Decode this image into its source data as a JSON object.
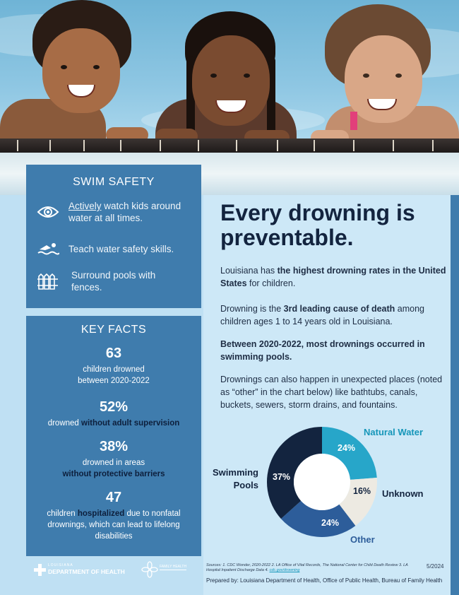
{
  "swim_safety": {
    "title": "SWIM SAFETY",
    "items": [
      {
        "icon": "eye-icon",
        "text_em": "Actively",
        "text": " watch kids around water at all times."
      },
      {
        "icon": "swimmer-icon",
        "text": "Teach water safety skills."
      },
      {
        "icon": "fence-icon",
        "text": "Surround pools with fences."
      }
    ]
  },
  "key_facts": {
    "title": "KEY FACTS",
    "items": [
      {
        "num": "63",
        "desc": "children drowned between 2020-2022"
      },
      {
        "num": "52%",
        "desc_pre": "drowned ",
        "desc_bold": "without adult supervision"
      },
      {
        "num": "38%",
        "desc_pre": "drowned in areas",
        "desc_bold": "without protective barriers"
      },
      {
        "num": "47",
        "desc_pre": "children ",
        "desc_bold": "hospitalized",
        "desc_post": " due to nonfatal drownings, which can lead to lifelong disabilities"
      }
    ]
  },
  "headline": "Every drowning is preventable.",
  "paragraphs": {
    "p1_pre": "Louisiana has ",
    "p1_bold": "the highest drowning rates in the United States",
    "p1_post": " for children.",
    "p2_pre": "Drowning is the ",
    "p2_bold": "3rd leading cause of death",
    "p2_post": " among children ages 1 to 14 years old in Louisiana.",
    "p3_bold": "Between 2020-2022, most drownings occurred in swimming pools.",
    "p4": "Drownings can also happen in unexpected places (noted as “other” in the chart below) like bathtubs, canals, buckets, sewers, storm drains, and fountains."
  },
  "chart_data": {
    "type": "pie",
    "donut": true,
    "categories": [
      "Natural Water",
      "Unknown",
      "Other",
      "Swimming Pools"
    ],
    "values": [
      24,
      16,
      24,
      37
    ],
    "value_labels": [
      "24%",
      "16%",
      "24%",
      "37%"
    ],
    "colors": [
      "#27a6c9",
      "#edeae2",
      "#2d5d9a",
      "#13243f"
    ],
    "label_colors": [
      "#1596b9",
      "#13243f",
      "#2d5d9a",
      "#13243f"
    ],
    "swimming_line1": "Swimming",
    "swimming_line2": "Pools"
  },
  "footer": {
    "ldh_small": "LOUISIANA",
    "ldh_big": "DEPARTMENT OF HEALTH",
    "fh_text": "FAMILY HEALTH",
    "sources": "Sources: 1. CDC Wonder, 2020-2022 2. LA Office of Vital Records, The National Center for Child Death Review 3. LA Hospital Inpatient Discharge Data 4. ",
    "sources_link": "cdc.gov/drowning",
    "date": "5/2024",
    "prepared": "Prepared by: Louisiana Department of Health, Office of Public Health, Bureau of Family Health"
  }
}
